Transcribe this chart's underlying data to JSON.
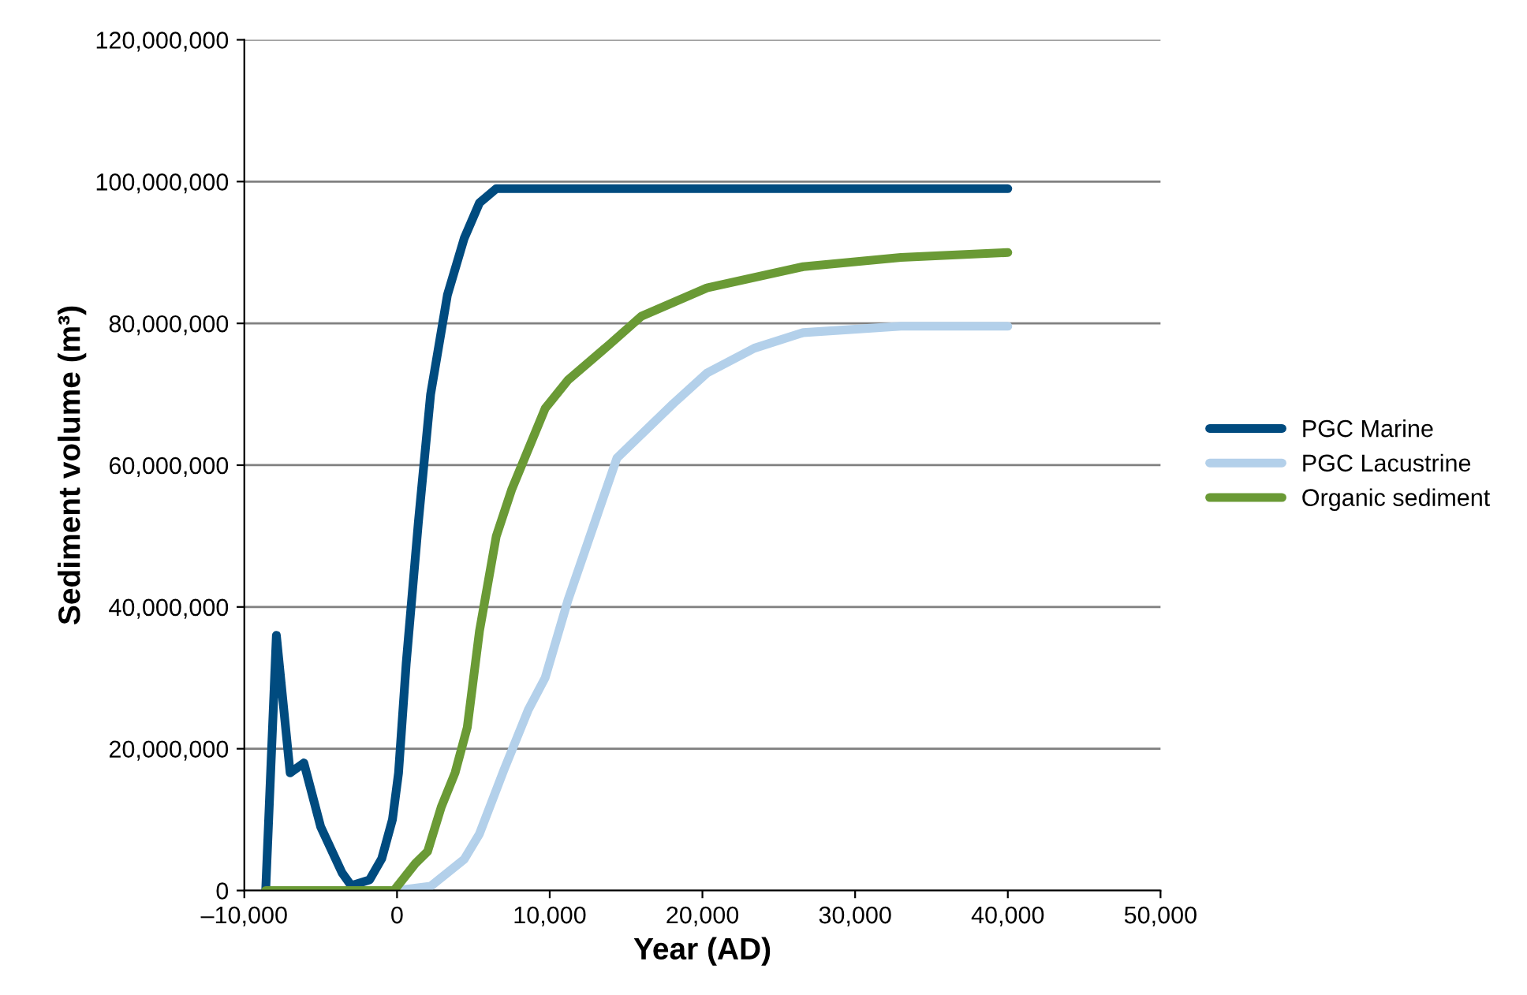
{
  "chart_data": {
    "type": "line",
    "xlabel": "Year (AD)",
    "ylabel": "Sediment volume (m³)",
    "xlim": [
      -10000,
      50000
    ],
    "xticks": [
      {
        "value": -10000,
        "label": "–10,000"
      },
      {
        "value": 0,
        "label": "0"
      },
      {
        "value": 10000,
        "label": "10,000"
      },
      {
        "value": 20000,
        "label": "20,000"
      },
      {
        "value": 30000,
        "label": "30,000"
      },
      {
        "value": 40000,
        "label": "40,000"
      },
      {
        "value": 50000,
        "label": "50,000"
      }
    ],
    "ylim": [
      0,
      120000000
    ],
    "yticks": [
      {
        "value": 0,
        "label": "0"
      },
      {
        "value": 20000000,
        "label": "20,000,000"
      },
      {
        "value": 40000000,
        "label": "40,000,000"
      },
      {
        "value": 60000000,
        "label": "60,000,000"
      },
      {
        "value": 80000000,
        "label": "80,000,000"
      },
      {
        "value": 100000000,
        "label": "100,000,000"
      },
      {
        "value": 120000000,
        "label": "120,000,000"
      }
    ],
    "grid": "y",
    "legend": "right",
    "marker": "none",
    "line_style": "solid",
    "series": [
      {
        "name": "PGC Marine",
        "color": "#004b7f",
        "x": [
          -8600,
          -7900,
          -7000,
          -6100,
          -5000,
          -3600,
          -3000,
          -1800,
          -1000,
          -300,
          100,
          600,
          1400,
          2200,
          3300,
          4400,
          5400,
          6500,
          40000
        ],
        "values": [
          0,
          36000000,
          16600000,
          18000000,
          9000000,
          2500000,
          700000,
          1500000,
          4500000,
          10000000,
          16600000,
          32000000,
          52000000,
          70000000,
          84000000,
          92000000,
          97000000,
          99000000,
          99000000
        ]
      },
      {
        "name": "PGC Lacustrine",
        "color": "#b3d0ea",
        "x": [
          0,
          2200,
          4400,
          5400,
          7000,
          8600,
          9700,
          11200,
          14400,
          18100,
          20300,
          23400,
          26600,
          33000,
          40000
        ],
        "values": [
          0,
          600000,
          4400000,
          8000000,
          17000000,
          25500000,
          30000000,
          41000000,
          61000000,
          68700000,
          73000000,
          76500000,
          78700000,
          79600000,
          79600000
        ]
      },
      {
        "name": "Organic sediment",
        "color": "#6a9a35",
        "x": [
          -8600,
          -200,
          1200,
          2000,
          2900,
          3800,
          4600,
          5400,
          6500,
          7500,
          9700,
          11200,
          13900,
          16000,
          20300,
          26600,
          33000,
          40000
        ],
        "values": [
          0,
          0,
          3800000,
          5500000,
          11800000,
          16600000,
          23000000,
          36600000,
          50000000,
          56500000,
          68000000,
          72000000,
          77000000,
          81000000,
          85000000,
          88000000,
          89300000,
          90000000
        ]
      }
    ]
  }
}
